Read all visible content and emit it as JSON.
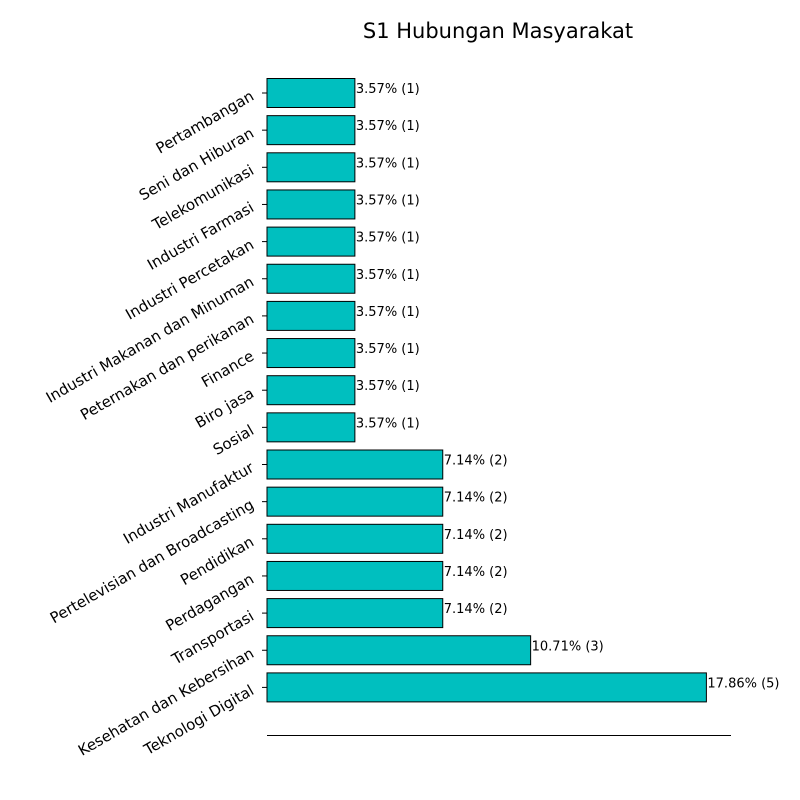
{
  "chart_data": {
    "type": "bar",
    "orientation": "horizontal",
    "title": "S1 Hubungan Masyarakat",
    "categories": [
      "Pertambangan",
      "Seni dan Hiburan",
      "Telekomunikasi",
      "Industri Farmasi",
      "Industri Percetakan",
      "Industri Makanan dan Minuman",
      "Peternakan dan perikanan",
      "Finance",
      "Biro jasa",
      "Sosial",
      "Industri Manufaktur",
      "Pertelevisian dan Broadcasting",
      "Pendidikan",
      "Perdagangan",
      "Transportasi",
      "Kesehatan dan Kebersihan",
      "Teknologi Digital"
    ],
    "values": [
      1,
      1,
      1,
      1,
      1,
      1,
      1,
      1,
      1,
      1,
      2,
      2,
      2,
      2,
      2,
      3,
      5
    ],
    "data_labels": [
      "3.57% (1)",
      "3.57% (1)",
      "3.57% (1)",
      "3.57% (1)",
      "3.57% (1)",
      "3.57% (1)",
      "3.57% (1)",
      "3.57% (1)",
      "3.57% (1)",
      "3.57% (1)",
      "7.14% (2)",
      "7.14% (2)",
      "7.14% (2)",
      "7.14% (2)",
      "7.14% (2)",
      "10.71% (3)",
      "17.86% (5)"
    ],
    "xlim": [
      0,
      5.28
    ],
    "bar_color": "#00BFBF",
    "edge_color": "#000000",
    "grid": false,
    "xlabel": "",
    "ylabel": ""
  }
}
